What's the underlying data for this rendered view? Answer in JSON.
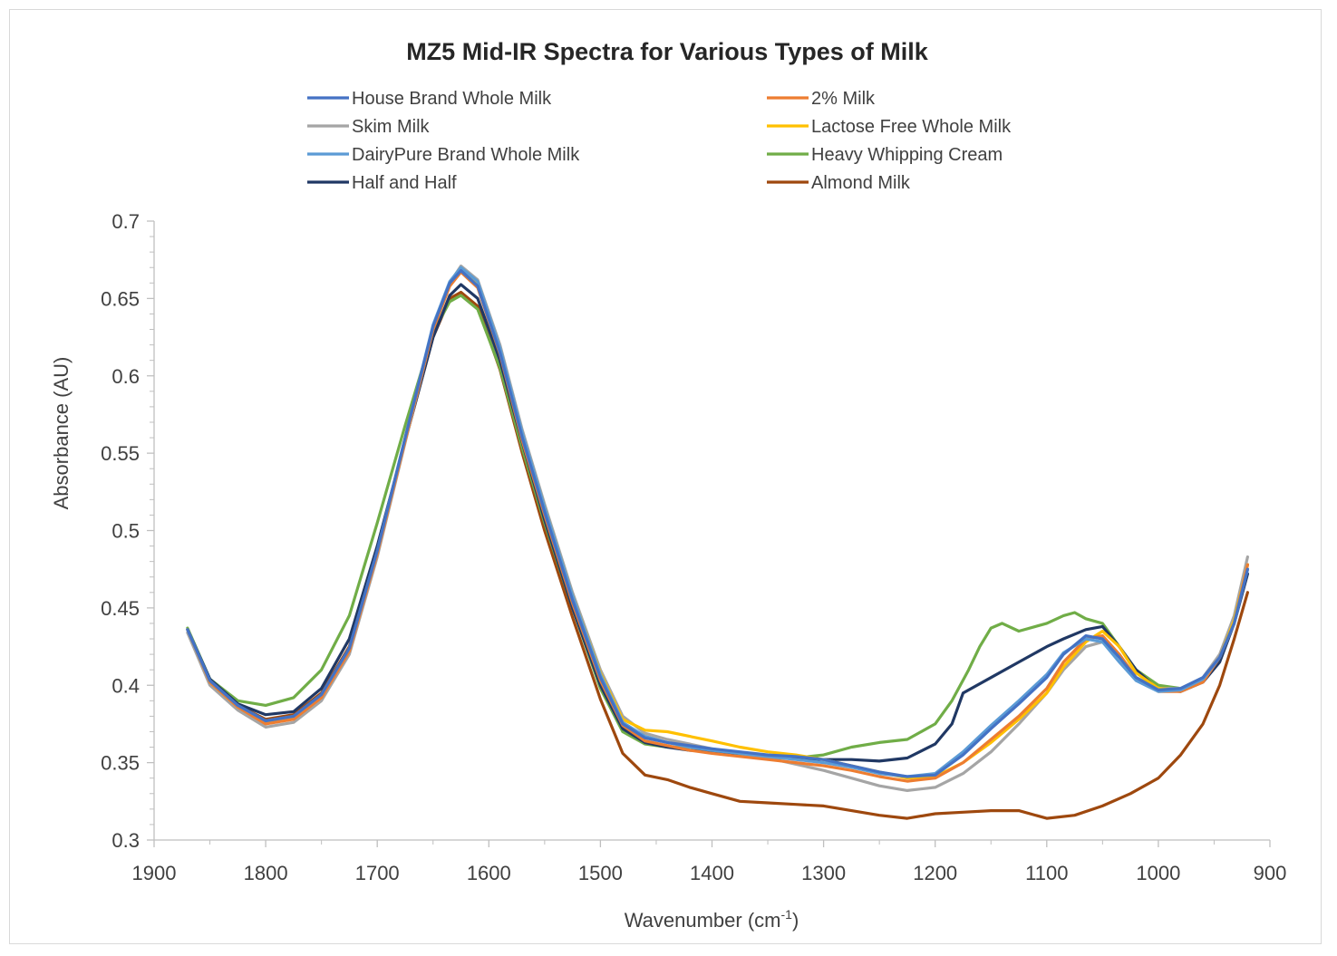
{
  "chart_data": {
    "type": "line",
    "title": "MZ5 Mid-IR Spectra for Various Types of Milk",
    "xlabel": "Wavenumber (cm",
    "xlabel_sup": "-1",
    "xlabel_suffix": ")",
    "ylabel": "Absorbance (AU)",
    "xlim": [
      1900,
      900
    ],
    "x_reversed": true,
    "ylim": [
      0.3,
      0.7
    ],
    "x_ticks": [
      "1900",
      "1800",
      "1700",
      "1600",
      "1500",
      "1400",
      "1300",
      "1200",
      "1100",
      "1000",
      "900"
    ],
    "y_ticks": [
      "0.3",
      "0.35",
      "0.4",
      "0.45",
      "0.5",
      "0.55",
      "0.6",
      "0.65",
      "0.7"
    ],
    "grid": false,
    "legend": "top",
    "series": [
      {
        "name": "House Brand Whole Milk",
        "color": "#4472c4",
        "x": [
          1870,
          1850,
          1825,
          1800,
          1775,
          1750,
          1725,
          1700,
          1675,
          1650,
          1635,
          1625,
          1610,
          1590,
          1570,
          1550,
          1525,
          1500,
          1480,
          1460,
          1440,
          1420,
          1400,
          1375,
          1350,
          1325,
          1300,
          1275,
          1250,
          1225,
          1200,
          1175,
          1150,
          1125,
          1100,
          1085,
          1065,
          1050,
          1035,
          1020,
          1000,
          980,
          960,
          945,
          932,
          920
        ],
        "y": [
          0.436,
          0.403,
          0.387,
          0.377,
          0.38,
          0.394,
          0.424,
          0.487,
          0.56,
          0.632,
          0.66,
          0.668,
          0.658,
          0.615,
          0.56,
          0.512,
          0.455,
          0.405,
          0.375,
          0.366,
          0.363,
          0.361,
          0.359,
          0.357,
          0.355,
          0.354,
          0.352,
          0.348,
          0.344,
          0.341,
          0.342,
          0.355,
          0.372,
          0.388,
          0.405,
          0.42,
          0.432,
          0.43,
          0.418,
          0.405,
          0.397,
          0.398,
          0.405,
          0.418,
          0.44,
          0.475
        ]
      },
      {
        "name": "2% Milk",
        "color": "#ed7d31",
        "x": [
          1870,
          1850,
          1825,
          1800,
          1775,
          1750,
          1725,
          1700,
          1675,
          1650,
          1635,
          1625,
          1610,
          1590,
          1570,
          1550,
          1525,
          1500,
          1480,
          1460,
          1440,
          1420,
          1400,
          1375,
          1350,
          1325,
          1300,
          1275,
          1250,
          1225,
          1200,
          1175,
          1150,
          1125,
          1100,
          1085,
          1065,
          1050,
          1035,
          1020,
          1000,
          980,
          960,
          945,
          932,
          920
        ],
        "y": [
          0.436,
          0.402,
          0.386,
          0.375,
          0.378,
          0.392,
          0.422,
          0.485,
          0.558,
          0.63,
          0.658,
          0.667,
          0.657,
          0.614,
          0.558,
          0.51,
          0.453,
          0.403,
          0.374,
          0.364,
          0.361,
          0.358,
          0.356,
          0.354,
          0.352,
          0.35,
          0.348,
          0.345,
          0.341,
          0.338,
          0.34,
          0.35,
          0.365,
          0.38,
          0.398,
          0.415,
          0.43,
          0.432,
          0.42,
          0.405,
          0.396,
          0.396,
          0.402,
          0.418,
          0.44,
          0.478
        ]
      },
      {
        "name": "Skim Milk",
        "color": "#a5a5a5",
        "x": [
          1870,
          1850,
          1825,
          1800,
          1775,
          1750,
          1725,
          1700,
          1675,
          1650,
          1635,
          1625,
          1610,
          1590,
          1570,
          1550,
          1525,
          1500,
          1480,
          1460,
          1440,
          1420,
          1400,
          1375,
          1350,
          1325,
          1300,
          1275,
          1250,
          1225,
          1200,
          1175,
          1150,
          1125,
          1100,
          1085,
          1065,
          1050,
          1035,
          1020,
          1000,
          980,
          960,
          945,
          932,
          920
        ],
        "y": [
          0.434,
          0.4,
          0.384,
          0.373,
          0.376,
          0.39,
          0.42,
          0.483,
          0.557,
          0.63,
          0.66,
          0.671,
          0.662,
          0.62,
          0.565,
          0.517,
          0.46,
          0.41,
          0.38,
          0.369,
          0.365,
          0.362,
          0.359,
          0.356,
          0.353,
          0.349,
          0.345,
          0.34,
          0.335,
          0.332,
          0.334,
          0.343,
          0.357,
          0.375,
          0.395,
          0.41,
          0.425,
          0.428,
          0.42,
          0.405,
          0.398,
          0.398,
          0.405,
          0.42,
          0.445,
          0.483
        ]
      },
      {
        "name": "Lactose Free Whole Milk",
        "color": "#ffc000",
        "x": [
          1870,
          1850,
          1825,
          1800,
          1775,
          1750,
          1725,
          1700,
          1675,
          1650,
          1635,
          1625,
          1610,
          1590,
          1570,
          1550,
          1525,
          1500,
          1480,
          1460,
          1440,
          1420,
          1400,
          1375,
          1350,
          1325,
          1300,
          1275,
          1250,
          1225,
          1200,
          1175,
          1150,
          1125,
          1100,
          1085,
          1065,
          1050,
          1035,
          1020,
          1000,
          980,
          960,
          945,
          932,
          920
        ],
        "y": [
          0.436,
          0.402,
          0.386,
          0.376,
          0.379,
          0.393,
          0.423,
          0.486,
          0.559,
          0.631,
          0.659,
          0.668,
          0.659,
          0.617,
          0.562,
          0.515,
          0.458,
          0.408,
          0.378,
          0.371,
          0.37,
          0.367,
          0.364,
          0.36,
          0.357,
          0.355,
          0.352,
          0.348,
          0.344,
          0.34,
          0.341,
          0.35,
          0.363,
          0.378,
          0.395,
          0.412,
          0.428,
          0.435,
          0.425,
          0.408,
          0.398,
          0.397,
          0.403,
          0.418,
          0.442,
          0.478
        ]
      },
      {
        "name": "DairyPure Brand Whole Milk",
        "color": "#5b9bd5",
        "x": [
          1870,
          1850,
          1825,
          1800,
          1775,
          1750,
          1725,
          1700,
          1675,
          1650,
          1635,
          1625,
          1610,
          1590,
          1570,
          1550,
          1525,
          1500,
          1480,
          1460,
          1440,
          1420,
          1400,
          1375,
          1350,
          1325,
          1300,
          1275,
          1250,
          1225,
          1200,
          1175,
          1150,
          1125,
          1100,
          1085,
          1065,
          1050,
          1035,
          1020,
          1000,
          980,
          960,
          945,
          932,
          920
        ],
        "y": [
          0.436,
          0.403,
          0.387,
          0.377,
          0.38,
          0.394,
          0.424,
          0.487,
          0.56,
          0.633,
          0.661,
          0.67,
          0.661,
          0.618,
          0.563,
          0.515,
          0.458,
          0.407,
          0.376,
          0.367,
          0.363,
          0.36,
          0.358,
          0.356,
          0.354,
          0.352,
          0.35,
          0.347,
          0.343,
          0.341,
          0.343,
          0.357,
          0.374,
          0.39,
          0.407,
          0.421,
          0.43,
          0.428,
          0.415,
          0.403,
          0.396,
          0.397,
          0.404,
          0.418,
          0.44,
          0.475
        ]
      },
      {
        "name": "Heavy Whipping Cream",
        "color": "#70ad47",
        "x": [
          1870,
          1850,
          1825,
          1800,
          1775,
          1750,
          1725,
          1700,
          1675,
          1650,
          1635,
          1625,
          1610,
          1590,
          1570,
          1550,
          1525,
          1500,
          1480,
          1460,
          1440,
          1420,
          1400,
          1375,
          1350,
          1325,
          1300,
          1275,
          1250,
          1225,
          1200,
          1185,
          1170,
          1160,
          1150,
          1140,
          1125,
          1100,
          1085,
          1075,
          1065,
          1050,
          1035,
          1020,
          1000,
          980,
          960,
          945,
          932,
          920
        ],
        "y": [
          0.437,
          0.404,
          0.39,
          0.387,
          0.392,
          0.41,
          0.445,
          0.505,
          0.568,
          0.628,
          0.648,
          0.652,
          0.643,
          0.605,
          0.553,
          0.505,
          0.45,
          0.398,
          0.37,
          0.362,
          0.36,
          0.36,
          0.358,
          0.355,
          0.353,
          0.353,
          0.355,
          0.36,
          0.363,
          0.365,
          0.375,
          0.39,
          0.41,
          0.425,
          0.437,
          0.44,
          0.435,
          0.44,
          0.445,
          0.447,
          0.443,
          0.44,
          0.425,
          0.41,
          0.4,
          0.398,
          0.404,
          0.418,
          0.442,
          0.478
        ]
      },
      {
        "name": "Half and Half",
        "color": "#203864",
        "x": [
          1870,
          1850,
          1825,
          1800,
          1775,
          1750,
          1725,
          1700,
          1675,
          1650,
          1635,
          1625,
          1610,
          1590,
          1570,
          1550,
          1525,
          1500,
          1480,
          1460,
          1440,
          1420,
          1400,
          1375,
          1350,
          1325,
          1300,
          1275,
          1250,
          1225,
          1200,
          1185,
          1175,
          1150,
          1125,
          1100,
          1085,
          1065,
          1050,
          1035,
          1020,
          1000,
          980,
          960,
          945,
          932,
          920
        ],
        "y": [
          0.436,
          0.404,
          0.388,
          0.381,
          0.383,
          0.398,
          0.43,
          0.49,
          0.558,
          0.625,
          0.652,
          0.659,
          0.65,
          0.61,
          0.557,
          0.507,
          0.45,
          0.4,
          0.372,
          0.363,
          0.36,
          0.358,
          0.357,
          0.356,
          0.354,
          0.353,
          0.352,
          0.352,
          0.351,
          0.353,
          0.362,
          0.375,
          0.395,
          0.405,
          0.415,
          0.425,
          0.43,
          0.436,
          0.438,
          0.425,
          0.41,
          0.397,
          0.396,
          0.402,
          0.415,
          0.44,
          0.472
        ]
      },
      {
        "name": "Almond Milk",
        "color": "#9e480e",
        "x": [
          1870,
          1850,
          1825,
          1800,
          1775,
          1750,
          1725,
          1700,
          1675,
          1650,
          1635,
          1625,
          1610,
          1590,
          1570,
          1550,
          1525,
          1500,
          1480,
          1460,
          1440,
          1420,
          1400,
          1375,
          1350,
          1325,
          1300,
          1275,
          1250,
          1225,
          1200,
          1175,
          1150,
          1125,
          1100,
          1075,
          1050,
          1025,
          1000,
          980,
          960,
          945,
          932,
          920
        ],
        "y": [
          0.436,
          0.403,
          0.387,
          0.378,
          0.381,
          0.395,
          0.425,
          0.487,
          0.558,
          0.625,
          0.65,
          0.654,
          0.645,
          0.604,
          0.55,
          0.5,
          0.444,
          0.391,
          0.356,
          0.342,
          0.339,
          0.334,
          0.33,
          0.325,
          0.324,
          0.323,
          0.322,
          0.319,
          0.316,
          0.314,
          0.317,
          0.318,
          0.319,
          0.319,
          0.314,
          0.316,
          0.322,
          0.33,
          0.34,
          0.355,
          0.375,
          0.4,
          0.43,
          0.46
        ]
      }
    ]
  }
}
